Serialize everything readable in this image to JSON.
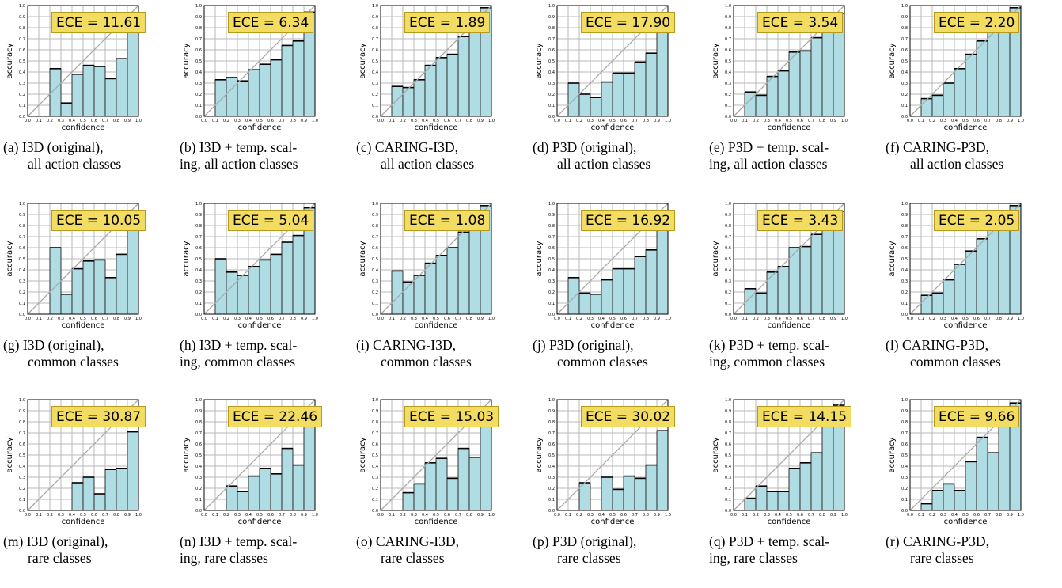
{
  "figure": {
    "tick_labels": [
      "0.0",
      "0.1",
      "0.2",
      "0.3",
      "0.4",
      "0.5",
      "0.6",
      "0.7",
      "0.8",
      "0.9",
      "1.0"
    ],
    "xlabel": "confidence",
    "ylabel": "accuracy",
    "colors": {
      "bar_fill": "#b0dde4",
      "bar_edge": "#222222",
      "grid": "#b8b8b8",
      "diagonal": "#a8a8a8",
      "ece_box": "#f3dc62"
    }
  },
  "chart_data": [
    {
      "type": "bar",
      "id": "a",
      "ece": "ECE = 11.61",
      "caption": [
        "(a) I3D (original),",
        "all action classes"
      ],
      "values": [
        0,
        0,
        0.43,
        0.12,
        0.38,
        0.46,
        0.45,
        0.34,
        0.52,
        0.9
      ],
      "xlabel": "confidence",
      "ylabel": "accuracy",
      "xlim": [
        0,
        1
      ],
      "ylim": [
        0,
        1
      ],
      "grid": true
    },
    {
      "type": "bar",
      "id": "b",
      "ece": "ECE = 6.34",
      "caption": [
        "(b) I3D + temp. scal-",
        "ing, all action classes"
      ],
      "values": [
        0,
        0.33,
        0.35,
        0.32,
        0.42,
        0.47,
        0.51,
        0.64,
        0.68,
        0.94
      ],
      "xlabel": "confidence",
      "ylabel": "accuracy",
      "xlim": [
        0,
        1
      ],
      "ylim": [
        0,
        1
      ],
      "grid": true
    },
    {
      "type": "bar",
      "id": "c",
      "ece": "ECE = 1.89",
      "caption": [
        "(c) CARING-I3D,",
        "all action classes"
      ],
      "values": [
        0,
        0.27,
        0.26,
        0.33,
        0.46,
        0.53,
        0.56,
        0.72,
        0.78,
        0.98
      ],
      "xlabel": "confidence",
      "ylabel": "accuracy",
      "xlim": [
        0,
        1
      ],
      "ylim": [
        0,
        1
      ],
      "grid": true
    },
    {
      "type": "bar",
      "id": "d",
      "ece": "ECE = 17.90",
      "caption": [
        "(d) P3D (original),",
        "all action classes"
      ],
      "values": [
        0,
        0.3,
        0.2,
        0.17,
        0.31,
        0.39,
        0.39,
        0.49,
        0.57,
        0.84
      ],
      "xlabel": "confidence",
      "ylabel": "accuracy",
      "xlim": [
        0,
        1
      ],
      "ylim": [
        0,
        1
      ],
      "grid": true
    },
    {
      "type": "bar",
      "id": "e",
      "ece": "ECE = 3.54",
      "caption": [
        "(e) P3D + temp. scal-",
        "ing, all action classes"
      ],
      "values": [
        0,
        0.22,
        0.19,
        0.36,
        0.41,
        0.58,
        0.59,
        0.71,
        0.84,
        0.93
      ],
      "xlabel": "confidence",
      "ylabel": "accuracy",
      "xlim": [
        0,
        1
      ],
      "ylim": [
        0,
        1
      ],
      "grid": true
    },
    {
      "type": "bar",
      "id": "f",
      "ece": "ECE = 2.20",
      "caption": [
        "(f) CARING-P3D,",
        "all action classes"
      ],
      "values": [
        0,
        0.16,
        0.19,
        0.3,
        0.43,
        0.56,
        0.68,
        0.77,
        0.84,
        0.98
      ],
      "xlabel": "confidence",
      "ylabel": "accuracy",
      "xlim": [
        0,
        1
      ],
      "ylim": [
        0,
        1
      ],
      "grid": true
    },
    {
      "type": "bar",
      "id": "g",
      "ece": "ECE = 10.05",
      "caption": [
        "(g) I3D (original),",
        "common classes"
      ],
      "values": [
        0,
        0,
        0.6,
        0.18,
        0.41,
        0.48,
        0.49,
        0.33,
        0.54,
        0.92
      ],
      "xlabel": "confidence",
      "ylabel": "accuracy",
      "xlim": [
        0,
        1
      ],
      "ylim": [
        0,
        1
      ],
      "grid": true
    },
    {
      "type": "bar",
      "id": "h",
      "ece": "ECE = 5.04",
      "caption": [
        "(h) I3D + temp. scal-",
        "ing, common classes"
      ],
      "values": [
        0,
        0.5,
        0.38,
        0.35,
        0.43,
        0.49,
        0.54,
        0.65,
        0.71,
        0.96
      ],
      "xlabel": "confidence",
      "ylabel": "accuracy",
      "xlim": [
        0,
        1
      ],
      "ylim": [
        0,
        1
      ],
      "grid": true
    },
    {
      "type": "bar",
      "id": "i",
      "ece": "ECE = 1.08",
      "caption": [
        "(i) CARING-I3D,",
        "common classes"
      ],
      "values": [
        0,
        0.39,
        0.29,
        0.35,
        0.46,
        0.53,
        0.6,
        0.74,
        0.8,
        0.98
      ],
      "xlabel": "confidence",
      "ylabel": "accuracy",
      "xlim": [
        0,
        1
      ],
      "ylim": [
        0,
        1
      ],
      "grid": true
    },
    {
      "type": "bar",
      "id": "j",
      "ece": "ECE = 16.92",
      "caption": [
        "(j) P3D (original),",
        "common classes"
      ],
      "values": [
        0,
        0.33,
        0.19,
        0.18,
        0.31,
        0.41,
        0.41,
        0.52,
        0.58,
        0.84
      ],
      "xlabel": "confidence",
      "ylabel": "accuracy",
      "xlim": [
        0,
        1
      ],
      "ylim": [
        0,
        1
      ],
      "grid": true
    },
    {
      "type": "bar",
      "id": "k",
      "ece": "ECE = 3.43",
      "caption": [
        "(k) P3D + temp. scal-",
        "ing, common classes"
      ],
      "values": [
        0,
        0.23,
        0.19,
        0.38,
        0.43,
        0.6,
        0.61,
        0.72,
        0.84,
        0.93
      ],
      "xlabel": "confidence",
      "ylabel": "accuracy",
      "xlim": [
        0,
        1
      ],
      "ylim": [
        0,
        1
      ],
      "grid": true
    },
    {
      "type": "bar",
      "id": "l",
      "ece": "ECE = 2.05",
      "caption": [
        "(l) CARING-P3D,",
        "common classes"
      ],
      "values": [
        0,
        0.17,
        0.19,
        0.31,
        0.45,
        0.57,
        0.68,
        0.77,
        0.84,
        0.98
      ],
      "xlabel": "confidence",
      "ylabel": "accuracy",
      "xlim": [
        0,
        1
      ],
      "ylim": [
        0,
        1
      ],
      "grid": true
    },
    {
      "type": "bar",
      "id": "m",
      "ece": "ECE = 30.87",
      "caption": [
        "(m) I3D (original),",
        "rare classes"
      ],
      "values": [
        0,
        0,
        0,
        0,
        0.25,
        0.3,
        0.15,
        0.37,
        0.38,
        0.71
      ],
      "xlabel": "confidence",
      "ylabel": "accuracy",
      "xlim": [
        0,
        1
      ],
      "ylim": [
        0,
        1
      ],
      "grid": true
    },
    {
      "type": "bar",
      "id": "n",
      "ece": "ECE = 22.46",
      "caption": [
        "(n) I3D + temp. scal-",
        "ing, rare classes"
      ],
      "values": [
        0,
        0,
        0.22,
        0.17,
        0.31,
        0.38,
        0.33,
        0.56,
        0.41,
        0.77
      ],
      "xlabel": "confidence",
      "ylabel": "accuracy",
      "xlim": [
        0,
        1
      ],
      "ylim": [
        0,
        1
      ],
      "grid": true
    },
    {
      "type": "bar",
      "id": "o",
      "ece": "ECE = 15.03",
      "caption": [
        "(o) CARING-I3D,",
        "rare classes"
      ],
      "values": [
        0,
        0,
        0.16,
        0.24,
        0.43,
        0.47,
        0.29,
        0.56,
        0.48,
        0.86
      ],
      "xlabel": "confidence",
      "ylabel": "accuracy",
      "xlim": [
        0,
        1
      ],
      "ylim": [
        0,
        1
      ],
      "grid": true
    },
    {
      "type": "bar",
      "id": "p",
      "ece": "ECE = 30.02",
      "caption": [
        "(p) P3D (original),",
        "rare classes"
      ],
      "values": [
        0,
        0,
        0.25,
        0,
        0.3,
        0.19,
        0.31,
        0.29,
        0.41,
        0.72
      ],
      "xlabel": "confidence",
      "ylabel": "accuracy",
      "xlim": [
        0,
        1
      ],
      "ylim": [
        0,
        1
      ],
      "grid": true
    },
    {
      "type": "bar",
      "id": "q",
      "ece": "ECE = 14.15",
      "caption": [
        "(q) P3D + temp. scal-",
        "ing, rare classes"
      ],
      "values": [
        0,
        0.11,
        0.22,
        0.17,
        0.17,
        0.38,
        0.43,
        0.52,
        0.76,
        0.95
      ],
      "xlabel": "confidence",
      "ylabel": "accuracy",
      "xlim": [
        0,
        1
      ],
      "ylim": [
        0,
        1
      ],
      "grid": true
    },
    {
      "type": "bar",
      "id": "r",
      "ece": "ECE = 9.66",
      "caption": [
        "(r) CARING-P3D,",
        "rare classes"
      ],
      "values": [
        0,
        0.06,
        0.18,
        0.24,
        0.18,
        0.44,
        0.66,
        0.52,
        0.81,
        0.97
      ],
      "xlabel": "confidence",
      "ylabel": "accuracy",
      "xlim": [
        0,
        1
      ],
      "ylim": [
        0,
        1
      ],
      "grid": true
    }
  ]
}
